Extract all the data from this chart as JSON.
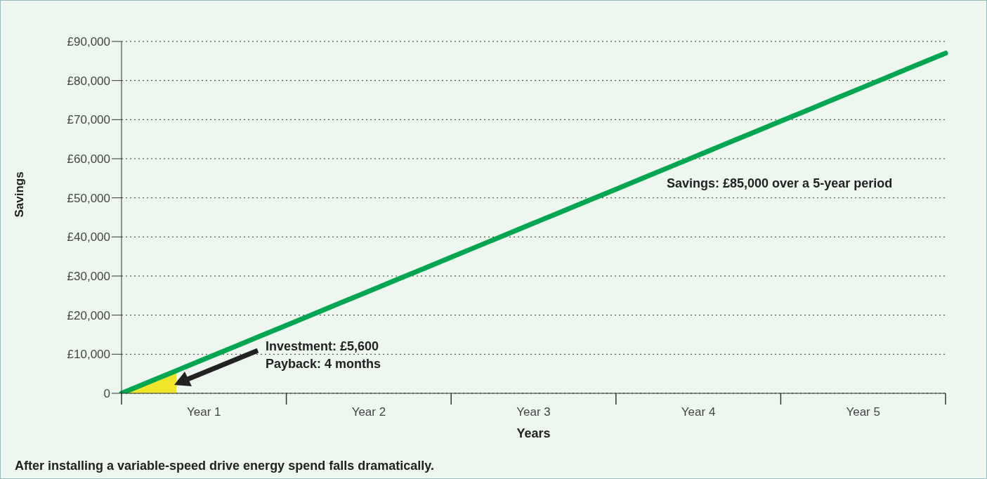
{
  "chart_data": {
    "type": "line",
    "xlabel": "Years",
    "ylabel": "Savings",
    "categories": [
      null,
      null,
      null,
      "Year 1",
      null,
      null,
      null,
      null,
      null,
      "Year 2",
      null,
      null,
      null,
      null,
      null,
      "Year 3",
      null,
      null,
      null,
      null,
      null,
      "Year 4",
      null,
      null,
      null,
      null,
      null,
      "Year 5",
      null,
      null,
      null
    ],
    "ylim": [
      0,
      90000
    ],
    "yticks": [
      0,
      {
        "value": 10000,
        "label": "£10,000"
      },
      {
        "value": 20000,
        "label": "£20,000"
      },
      {
        "value": 30000,
        "label": "£30,000"
      },
      {
        "value": 40000,
        "label": "£40,000"
      },
      {
        "value": 50000,
        "label": "£50,000"
      },
      {
        "value": 60000,
        "label": "£60,000"
      },
      {
        "value": 70000,
        "label": "£70,000"
      },
      {
        "value": 80000,
        "label": "£80,000"
      },
      {
        "value": 90000,
        "label": "£90,000"
      }
    ],
    "grid": "y",
    "line_style": "solid",
    "marker": "none",
    "series": [
      {
        "type": "area",
        "color": "#f0e52a",
        "values": [
          0,
          2800,
          5600,
          null,
          null,
          null,
          null,
          null,
          null,
          null,
          null,
          null,
          null,
          null,
          null,
          null,
          null,
          null,
          null,
          null,
          null,
          null,
          null,
          null,
          null,
          null,
          null,
          null,
          null,
          null,
          null
        ]
      },
      {
        "type": "line",
        "color": "#00a650",
        "values": [
          0,
          2900,
          5800,
          8700,
          11600,
          14500,
          17400,
          20300,
          23200,
          26100,
          29000,
          31900,
          34800,
          37700,
          40600,
          43500,
          46400,
          49300,
          52200,
          55100,
          58000,
          60900,
          63800,
          66700,
          69600,
          72500,
          75400,
          78300,
          81200,
          84100,
          87000
        ]
      }
    ],
    "annotations": [
      "Investment: £5,600",
      "Payback: 4 months",
      "Savings: £85,000 over a 5-year period",
      "After installing a variable-speed drive energy spend falls dramatically."
    ]
  }
}
